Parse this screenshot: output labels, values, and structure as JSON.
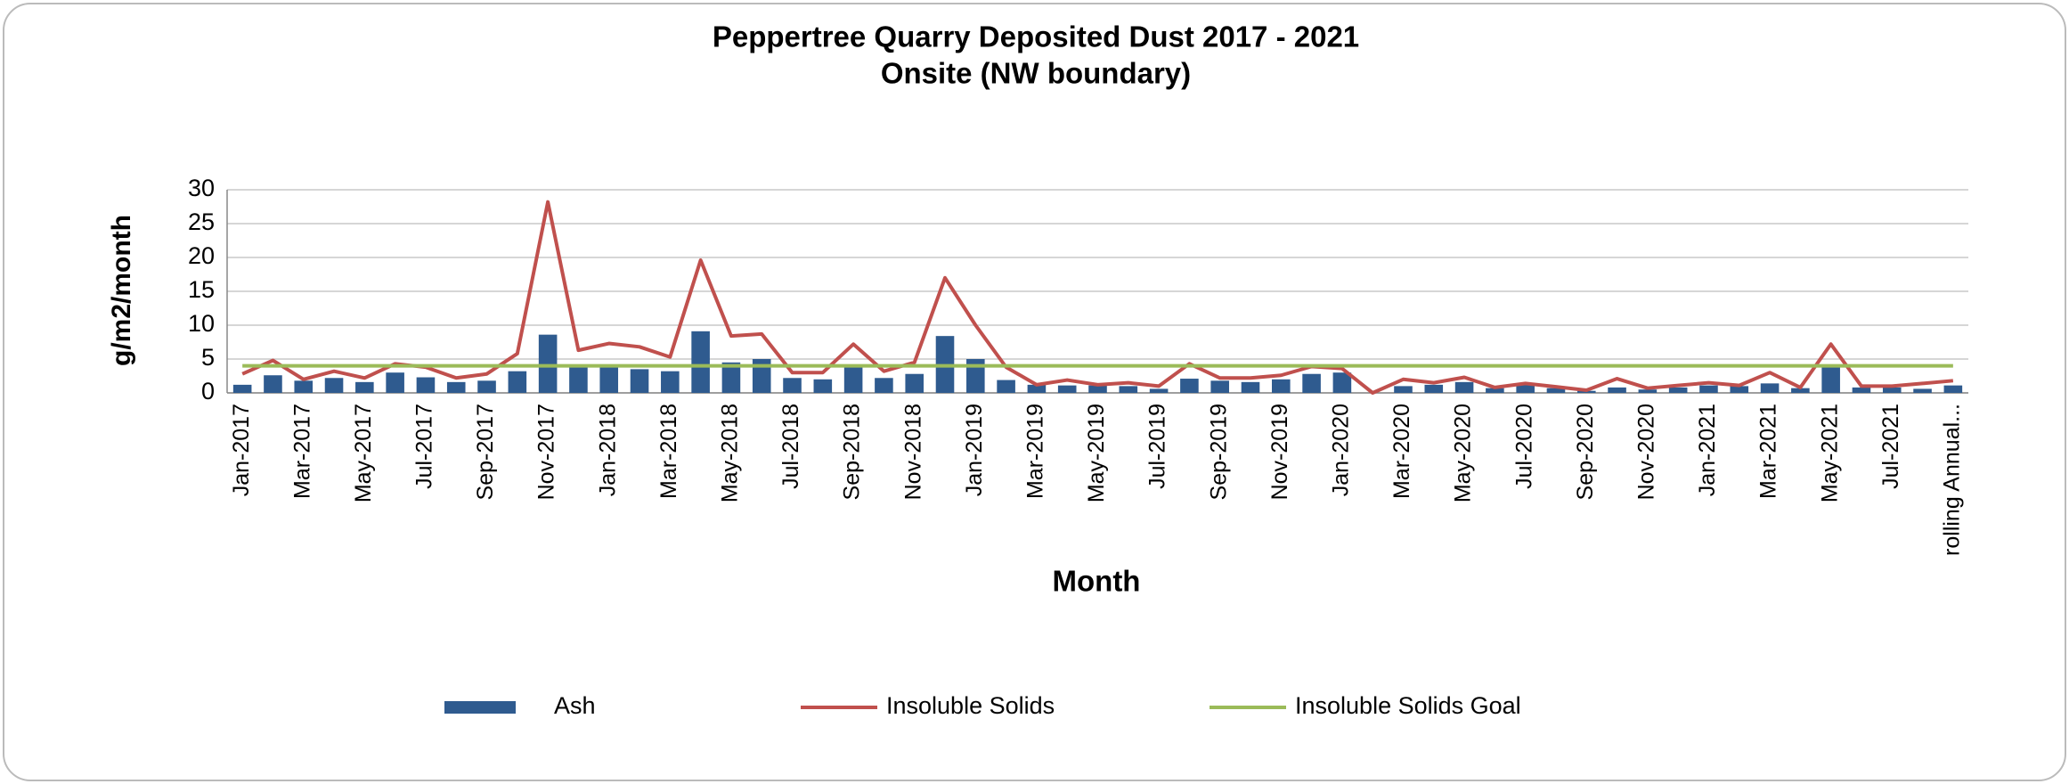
{
  "chart_data": {
    "type": "bar_line",
    "title": "Peppertree Quarry Deposited Dust 2017 - 2021",
    "subtitle": "Onsite (NW boundary)",
    "x_label": "Month",
    "y_label": "g/m2/month",
    "categories": [
      "Jan-2017",
      null,
      "Mar-2017",
      null,
      "May-2017",
      null,
      "Jul-2017",
      null,
      "Sep-2017",
      null,
      "Nov-2017",
      null,
      "Jan-2018",
      null,
      "Mar-2018",
      null,
      "May-2018",
      null,
      "Jul-2018",
      null,
      "Sep-2018",
      null,
      "Nov-2018",
      null,
      "Jan-2019",
      null,
      "Mar-2019",
      null,
      "May-2019",
      null,
      "Jul-2019",
      null,
      "Sep-2019",
      null,
      "Nov-2019",
      null,
      "Jan-2020",
      null,
      "Mar-2020",
      null,
      "May-2020",
      null,
      "Jul-2020",
      null,
      "Sep-2020",
      null,
      "Nov-2020",
      null,
      "Jan-2021",
      null,
      "Mar-2021",
      null,
      "May-2021",
      null,
      "Jul-2021",
      null,
      "rolling Annual..."
    ],
    "series": [
      {
        "name": "Ash",
        "kind": "bar",
        "color": "#2f5b8f",
        "values": [
          1.2,
          2.6,
          1.8,
          2.2,
          1.6,
          3.0,
          2.3,
          1.6,
          1.8,
          3.2,
          8.6,
          3.8,
          3.8,
          3.5,
          3.2,
          9.1,
          4.5,
          5.0,
          2.2,
          2.0,
          3.8,
          2.2,
          2.8,
          8.4,
          5.0,
          1.9,
          1.2,
          1.1,
          1.1,
          1.0,
          0.6,
          2.1,
          1.8,
          1.6,
          2.0,
          2.8,
          3.0,
          0,
          1.0,
          1.2,
          1.6,
          0.7,
          1.2,
          0.7,
          0.3,
          0.8,
          0.5,
          0.8,
          1.1,
          1.0,
          1.4,
          0.7,
          3.8,
          0.8,
          0.8,
          0.6,
          1.1
        ]
      },
      {
        "name": "Insoluble Solids",
        "kind": "line",
        "color": "#c0504d",
        "values": [
          2.8,
          4.8,
          2.0,
          3.2,
          2.2,
          4.3,
          3.8,
          2.2,
          2.8,
          5.8,
          28.2,
          6.3,
          7.3,
          6.8,
          5.3,
          19.6,
          8.4,
          8.7,
          3.0,
          3.0,
          7.2,
          3.2,
          4.5,
          17.0,
          10.0,
          3.8,
          1.2,
          1.9,
          1.2,
          1.5,
          1.0,
          4.3,
          2.2,
          2.2,
          2.6,
          3.9,
          3.6,
          0,
          2.0,
          1.5,
          2.3,
          0.8,
          1.4,
          0.9,
          0.4,
          2.1,
          0.7,
          1.1,
          1.5,
          1.1,
          3.0,
          0.8,
          7.2,
          1.0,
          1.0,
          1.4,
          1.8
        ]
      },
      {
        "name": "Insoluble Solids Goal",
        "kind": "line",
        "color": "#9bbb59",
        "values": [
          4,
          4,
          4,
          4,
          4,
          4,
          4,
          4,
          4,
          4,
          4,
          4,
          4,
          4,
          4,
          4,
          4,
          4,
          4,
          4,
          4,
          4,
          4,
          4,
          4,
          4,
          4,
          4,
          4,
          4,
          4,
          4,
          4,
          4,
          4,
          4,
          4,
          4,
          4,
          4,
          4,
          4,
          4,
          4,
          4,
          4,
          4,
          4,
          4,
          4,
          4,
          4,
          4,
          4,
          4,
          4,
          4
        ]
      }
    ],
    "ylim": [
      0,
      30
    ],
    "yticks": [
      0,
      5,
      10,
      15,
      20,
      25,
      30
    ],
    "grid": true,
    "legend": "bottom"
  }
}
